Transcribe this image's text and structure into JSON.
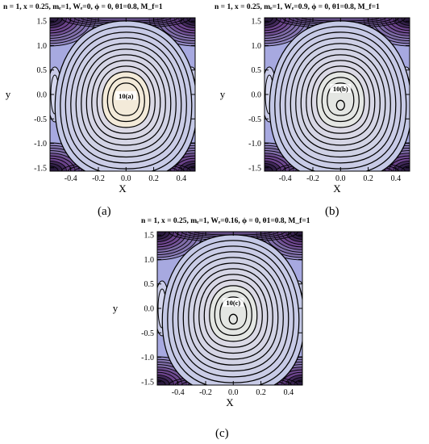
{
  "chart_data": [
    {
      "type": "contour",
      "panel": "a",
      "title": "n = 1, x = 0.25, mₑ=1, Wₑ=0, ϕ = 0, θ1=0.8, M_f=1",
      "xlabel": "x",
      "ylabel": "y",
      "xlim": [
        -0.55,
        0.5
      ],
      "ylim": [
        -1.57,
        1.57
      ],
      "xticks": [
        "-0.4",
        "-0.2",
        "0.0",
        "0.2",
        "0.4"
      ],
      "yticks": [
        "1.5",
        "1.0",
        "0.5",
        "0.0",
        "-0.5",
        "-1.0",
        "-1.5"
      ],
      "annotation": "10(a)",
      "center_eye": false,
      "center_color": "#f3ead9",
      "caption": "(a)"
    },
    {
      "type": "contour",
      "panel": "b",
      "title": "n = 1, x = 0.25, mₑ=1, Wₑ=0.9, ϕ = 0, θ1=0.8, M_f=1",
      "xlabel": "x",
      "ylabel": "y",
      "xlim": [
        -0.55,
        0.5
      ],
      "ylim": [
        -1.57,
        1.57
      ],
      "xticks": [
        "-0.4",
        "-0.2",
        "0.0",
        "0.2",
        "0.4"
      ],
      "yticks": [
        "1.5",
        "1.0",
        "0.5",
        "0.0",
        "-0.5",
        "-1.0",
        "-1.5"
      ],
      "annotation": "10(b)",
      "center_eye": true,
      "center_color": "#e4e6e3",
      "caption": "(b)"
    },
    {
      "type": "contour",
      "panel": "c",
      "title": "n = 1, x = 0.25, mₑ=1, Wₑ=0.16, ϕ = 0, θ1=0.8, M_f=1",
      "xlabel": "x",
      "ylabel": "y",
      "xlim": [
        -0.55,
        0.5
      ],
      "ylim": [
        -1.57,
        1.57
      ],
      "xticks": [
        "-0.4",
        "-0.2",
        "0.0",
        "0.2",
        "0.4"
      ],
      "yticks": [
        "1.5",
        "1.0",
        "0.5",
        "0.0",
        "-0.5",
        "-1.0",
        "-1.5"
      ],
      "annotation": "10(c)",
      "center_eye": true,
      "center_color": "#e4e6e3",
      "caption": "(c)"
    }
  ],
  "colors": {
    "outer": "#a7a9e0",
    "mid": "#c4c8e6",
    "corner_dark": "#231536",
    "corner_purple": "#6a3f88",
    "contour": "#000000"
  }
}
